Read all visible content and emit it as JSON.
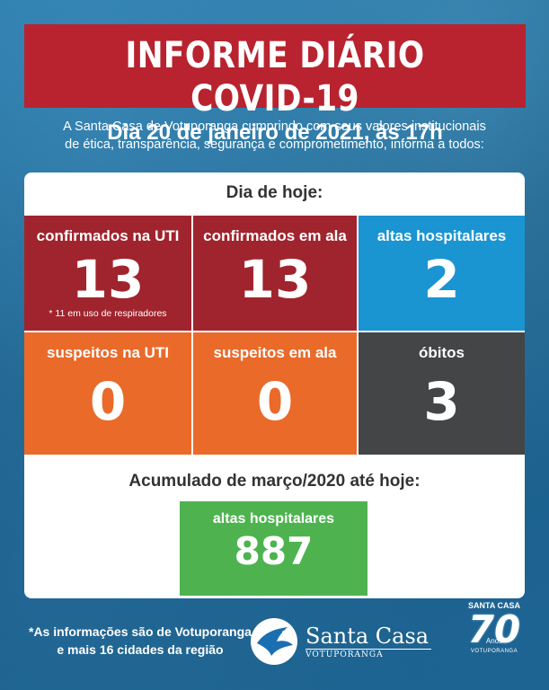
{
  "header": {
    "title": "INFORME DIÁRIO COVID-19",
    "subtitle": "Dia 20 de janeiro de 2021, às 17h"
  },
  "intro": {
    "line1": "A Santa Casa de Votuporanga cumprindo com seus valores institucionais",
    "line2": "de ética, transparência, segurança e comprometimento, informa a todos:"
  },
  "today": {
    "label": "Dia de hoje:",
    "tiles": [
      {
        "label": "confirmados na UTI",
        "value": "13",
        "note": "* 11 em uso de respiradores",
        "color": "#a0242d"
      },
      {
        "label": "confirmados em ala",
        "value": "13",
        "color": "#a0242d"
      },
      {
        "label": "altas hospitalares",
        "value": "2",
        "color": "#1a95d1"
      },
      {
        "label": "suspeitos na UTI",
        "value": "0",
        "color": "#ea6a2a"
      },
      {
        "label": "suspeitos em ala",
        "value": "0",
        "color": "#ea6a2a"
      },
      {
        "label": "óbitos",
        "value": "3",
        "color": "#444547"
      }
    ]
  },
  "accumulated": {
    "label": "Acumulado de março/2020 até hoje:",
    "tile": {
      "label": "altas hospitalares",
      "value": "887",
      "color": "#4eb34f"
    }
  },
  "footer": {
    "note_line1": "*As informações são de Votuporanga",
    "note_line2": "e mais 16 cidades da região",
    "logo_name": "Santa Casa",
    "logo_sub": "VOTUPORANGA",
    "anniversary_top": "SANTA CASA",
    "anniversary_number": "70",
    "anniversary_anos": "Anos",
    "anniversary_bottom": "VOTUPORANGA",
    "logo_icon": "dove-icon"
  }
}
